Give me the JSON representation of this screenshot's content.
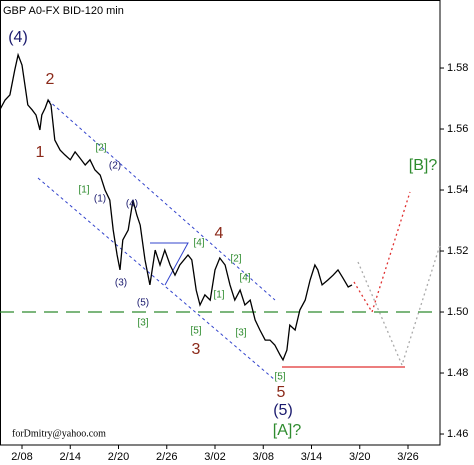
{
  "chart_data": {
    "type": "line",
    "title": "GBP A0-FX BID-120 min",
    "footer": "forDmitry@yahoo.com",
    "color": "#000000",
    "xlim": [
      -0.456,
      8.663
    ],
    "xticks": [
      {
        "value": 0,
        "label": "2/08"
      },
      {
        "value": 1,
        "label": "2/14"
      },
      {
        "value": 2,
        "label": "2/20"
      },
      {
        "value": 3,
        "label": "2/26"
      },
      {
        "value": 4,
        "label": "3/02"
      },
      {
        "value": 5,
        "label": "3/08"
      },
      {
        "value": 6,
        "label": "3/14"
      },
      {
        "value": 7,
        "label": "3/20"
      },
      {
        "value": 8,
        "label": "3/26"
      }
    ],
    "ylim": [
      1.4564,
      1.6023
    ],
    "yticks": [
      1.46,
      1.48,
      {
        "value": 1.5,
        "label": "1.50"
      },
      1.52,
      1.54,
      1.56,
      1.58
    ],
    "x": [
      -0.46,
      -0.35,
      -0.25,
      -0.15,
      -0.08,
      0,
      0.06,
      0.12,
      0.21,
      0.29,
      0.37,
      0.41,
      0.48,
      0.54,
      0.6,
      0.68,
      0.79,
      0.89,
      1.0,
      1.1,
      1.2,
      1.31,
      1.41,
      1.51,
      1.62,
      1.72,
      1.82,
      1.89,
      1.97,
      2.03,
      2.09,
      2.2,
      2.3,
      2.38,
      2.45,
      2.55,
      2.65,
      2.76,
      2.86,
      2.96,
      3.07,
      3.17,
      3.27,
      3.44,
      3.52,
      3.61,
      3.69,
      3.79,
      3.9,
      4.0,
      4.1,
      4.21,
      4.31,
      4.41,
      4.52,
      4.62,
      4.73,
      4.83,
      4.93,
      5.04,
      5.14,
      5.24,
      5.35,
      5.41,
      5.49,
      5.55,
      5.66,
      5.76,
      5.87,
      5.97,
      6.07,
      6.13,
      6.22,
      6.34,
      6.45,
      6.55,
      6.65,
      6.76,
      6.84
    ],
    "values": [
      1.5663,
      1.5695,
      1.5712,
      1.5794,
      1.5843,
      1.581,
      1.5745,
      1.5679,
      1.5663,
      1.5646,
      1.5597,
      1.5646,
      1.5669,
      1.5695,
      1.5679,
      1.5564,
      1.5531,
      1.5515,
      1.5499,
      1.5525,
      1.5505,
      1.5482,
      1.5499,
      1.5466,
      1.5449,
      1.54,
      1.5367,
      1.5269,
      1.5187,
      1.5138,
      1.5236,
      1.5269,
      1.5367,
      1.5318,
      1.5285,
      1.5171,
      1.5089,
      1.5203,
      1.5154,
      1.5203,
      1.5154,
      1.5121,
      1.5154,
      1.5187,
      1.5171,
      1.5072,
      1.5023,
      1.5056,
      1.5039,
      1.5138,
      1.5177,
      1.5154,
      1.5089,
      1.5039,
      1.5072,
      1.5023,
      1.5039,
      1.4974,
      1.4941,
      1.4908,
      1.4908,
      1.4892,
      1.4859,
      1.4843,
      1.4875,
      1.4957,
      1.4941,
      1.5007,
      1.5039,
      1.5105,
      1.5154,
      1.5138,
      1.5089,
      1.5105,
      1.5121,
      1.5138,
      1.5112,
      1.5082,
      1.5089
    ],
    "annotations": [
      "(4)",
      "2",
      "1",
      "[2]",
      "(2)",
      "[1]",
      "(1)",
      "(4)",
      "(3)",
      "4",
      "[4]",
      "(5)",
      "[3]",
      "[2]",
      "[4]",
      "[1]",
      "[5]",
      "3",
      "[3]",
      "[5]",
      "5",
      "(5)",
      "[A]?",
      "[B]?"
    ]
  }
}
